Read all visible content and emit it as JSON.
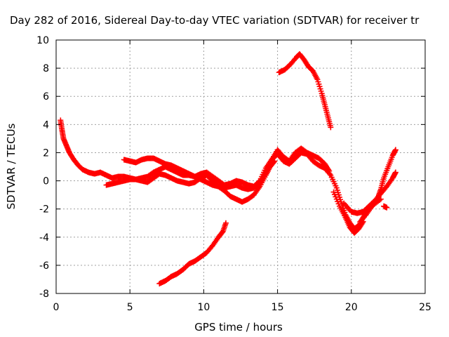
{
  "chart_data": {
    "type": "scatter",
    "title": "Day 282 of 2016, Sidereal Day-to-day VTEC variation (SDTVAR) for receiver tr",
    "xlabel": "GPS time / hours",
    "ylabel": "SDTVAR / TECUs",
    "xlim": [
      0,
      25
    ],
    "ylim": [
      -8,
      10
    ],
    "xticks": [
      "0",
      "5",
      "10",
      "15",
      "20",
      "25"
    ],
    "yticks": [
      "-8",
      "-6",
      "-4",
      "-2",
      "0",
      "2",
      "4",
      "6",
      "8",
      "10"
    ],
    "grid": true,
    "marker": "plus",
    "color": "#ff0000",
    "series": [
      {
        "points": [
          [
            0.3,
            4.3
          ],
          [
            0.4,
            3.6
          ],
          [
            0.5,
            3.0
          ],
          [
            0.7,
            2.5
          ],
          [
            0.9,
            2.0
          ],
          [
            1.2,
            1.5
          ],
          [
            1.5,
            1.1
          ],
          [
            1.8,
            0.8
          ],
          [
            2.2,
            0.6
          ],
          [
            2.6,
            0.5
          ],
          [
            3.0,
            0.6
          ],
          [
            3.4,
            0.4
          ],
          [
            3.8,
            0.2
          ],
          [
            4.2,
            0.3
          ],
          [
            4.6,
            0.3
          ],
          [
            5.0,
            0.2
          ],
          [
            5.4,
            0.1
          ],
          [
            5.8,
            0.2
          ],
          [
            6.2,
            0.3
          ],
          [
            6.6,
            0.6
          ],
          [
            7.0,
            0.8
          ],
          [
            7.4,
            1.0
          ],
          [
            7.8,
            0.8
          ],
          [
            8.2,
            0.6
          ],
          [
            8.6,
            0.4
          ],
          [
            9.0,
            0.4
          ],
          [
            9.4,
            0.3
          ],
          [
            9.8,
            0.5
          ],
          [
            10.2,
            0.6
          ],
          [
            10.6,
            0.3
          ],
          [
            11.0,
            0.0
          ],
          [
            11.4,
            -0.3
          ],
          [
            11.8,
            -0.2
          ],
          [
            12.2,
            0.0
          ],
          [
            12.6,
            -0.1
          ],
          [
            13.0,
            -0.3
          ],
          [
            13.4,
            -0.4
          ],
          [
            13.8,
            0.0
          ],
          [
            14.2,
            0.9
          ],
          [
            14.6,
            1.5
          ],
          [
            15.0,
            1.9
          ],
          [
            15.4,
            1.4
          ],
          [
            15.8,
            1.2
          ],
          [
            16.2,
            1.6
          ],
          [
            16.6,
            2.0
          ],
          [
            17.0,
            1.9
          ],
          [
            17.4,
            1.4
          ],
          [
            17.8,
            1.1
          ],
          [
            18.2,
            0.9
          ],
          [
            18.6,
            0.4
          ],
          [
            19.0,
            -0.5
          ],
          [
            19.3,
            -1.5
          ],
          [
            19.6,
            -2.4
          ],
          [
            19.9,
            -3.0
          ],
          [
            20.2,
            -3.4
          ],
          [
            20.5,
            -3.2
          ],
          [
            20.8,
            -2.6
          ],
          [
            21.1,
            -2.1
          ],
          [
            21.5,
            -1.7
          ],
          [
            22.0,
            -1.3
          ]
        ]
      },
      {
        "points": [
          [
            3.4,
            -0.3
          ],
          [
            3.8,
            -0.2
          ],
          [
            4.2,
            -0.1
          ],
          [
            4.6,
            0.0
          ],
          [
            5.0,
            0.1
          ],
          [
            5.4,
            0.1
          ],
          [
            5.8,
            0.0
          ],
          [
            6.2,
            -0.1
          ],
          [
            6.6,
            0.2
          ],
          [
            7.0,
            0.5
          ],
          [
            7.4,
            0.4
          ],
          [
            7.8,
            0.2
          ],
          [
            8.2,
            0.0
          ],
          [
            8.6,
            -0.1
          ],
          [
            9.0,
            -0.2
          ],
          [
            9.4,
            -0.1
          ],
          [
            9.8,
            0.2
          ],
          [
            10.2,
            0.4
          ],
          [
            10.6,
            0.0
          ],
          [
            11.0,
            -0.4
          ],
          [
            11.4,
            -0.7
          ],
          [
            11.8,
            -1.1
          ],
          [
            12.2,
            -1.3
          ],
          [
            12.6,
            -1.5
          ],
          [
            13.0,
            -1.3
          ],
          [
            13.4,
            -1.0
          ],
          [
            13.8,
            -0.4
          ],
          [
            14.2,
            0.4
          ],
          [
            14.5,
            1.0
          ],
          [
            14.8,
            1.4
          ]
        ]
      },
      {
        "points": [
          [
            4.6,
            1.5
          ],
          [
            5.0,
            1.4
          ],
          [
            5.4,
            1.3
          ],
          [
            5.8,
            1.5
          ],
          [
            6.2,
            1.6
          ],
          [
            6.6,
            1.6
          ],
          [
            7.0,
            1.4
          ],
          [
            7.4,
            1.2
          ],
          [
            7.8,
            1.1
          ],
          [
            8.2,
            0.9
          ],
          [
            8.6,
            0.7
          ],
          [
            9.0,
            0.5
          ],
          [
            9.4,
            0.3
          ],
          [
            9.8,
            0.1
          ],
          [
            10.2,
            -0.1
          ],
          [
            10.6,
            -0.3
          ],
          [
            11.0,
            -0.4
          ],
          [
            11.4,
            -0.5
          ],
          [
            11.8,
            -0.4
          ],
          [
            12.2,
            -0.3
          ],
          [
            12.6,
            -0.5
          ],
          [
            13.0,
            -0.6
          ],
          [
            13.4,
            -0.5
          ],
          [
            13.8,
            -0.2
          ],
          [
            14.2,
            0.6
          ],
          [
            14.6,
            1.5
          ],
          [
            15.0,
            2.2
          ],
          [
            15.4,
            1.7
          ],
          [
            15.8,
            1.4
          ],
          [
            16.2,
            2.0
          ],
          [
            16.6,
            2.3
          ],
          [
            17.0,
            2.0
          ],
          [
            17.4,
            1.8
          ],
          [
            17.8,
            1.6
          ],
          [
            18.2,
            1.2
          ],
          [
            18.5,
            0.7
          ]
        ]
      },
      {
        "points": [
          [
            7.0,
            -7.3
          ],
          [
            7.4,
            -7.1
          ],
          [
            7.8,
            -6.8
          ],
          [
            8.2,
            -6.6
          ],
          [
            8.6,
            -6.3
          ],
          [
            9.0,
            -5.9
          ],
          [
            9.4,
            -5.7
          ],
          [
            9.8,
            -5.4
          ],
          [
            10.2,
            -5.1
          ],
          [
            10.6,
            -4.6
          ],
          [
            11.0,
            -4.0
          ],
          [
            11.3,
            -3.6
          ],
          [
            11.5,
            -3.0
          ]
        ]
      },
      {
        "points": [
          [
            15.1,
            7.7
          ],
          [
            15.5,
            7.9
          ],
          [
            15.9,
            8.3
          ],
          [
            16.3,
            8.8
          ],
          [
            16.5,
            9.0
          ],
          [
            16.8,
            8.6
          ],
          [
            17.1,
            8.1
          ],
          [
            17.4,
            7.8
          ],
          [
            17.7,
            7.2
          ],
          [
            18.0,
            6.2
          ],
          [
            18.2,
            5.4
          ],
          [
            18.4,
            4.6
          ],
          [
            18.6,
            3.8
          ]
        ]
      },
      {
        "points": [
          [
            19.5,
            -1.6
          ],
          [
            20.0,
            -2.2
          ],
          [
            20.4,
            -2.3
          ],
          [
            20.8,
            -2.2
          ],
          [
            21.2,
            -1.8
          ],
          [
            21.6,
            -1.4
          ],
          [
            22.0,
            -0.9
          ],
          [
            22.4,
            -0.4
          ],
          [
            22.8,
            0.2
          ],
          [
            23.0,
            0.6
          ]
        ]
      },
      {
        "points": [
          [
            20.6,
            -2.9
          ],
          [
            21.0,
            -2.4
          ],
          [
            21.4,
            -1.8
          ],
          [
            21.8,
            -1.2
          ],
          [
            22.0,
            -0.6
          ],
          [
            22.2,
            0.2
          ],
          [
            22.5,
            1.0
          ],
          [
            22.8,
            1.8
          ],
          [
            23.0,
            2.2
          ]
        ]
      },
      {
        "points": [
          [
            18.8,
            -0.8
          ],
          [
            19.2,
            -1.8
          ],
          [
            19.6,
            -2.6
          ],
          [
            19.9,
            -3.3
          ],
          [
            20.2,
            -3.7
          ],
          [
            20.5,
            -3.4
          ],
          [
            20.8,
            -2.9
          ]
        ]
      },
      {
        "points": [
          [
            22.2,
            -1.8
          ],
          [
            22.4,
            -1.9
          ]
        ]
      }
    ]
  }
}
